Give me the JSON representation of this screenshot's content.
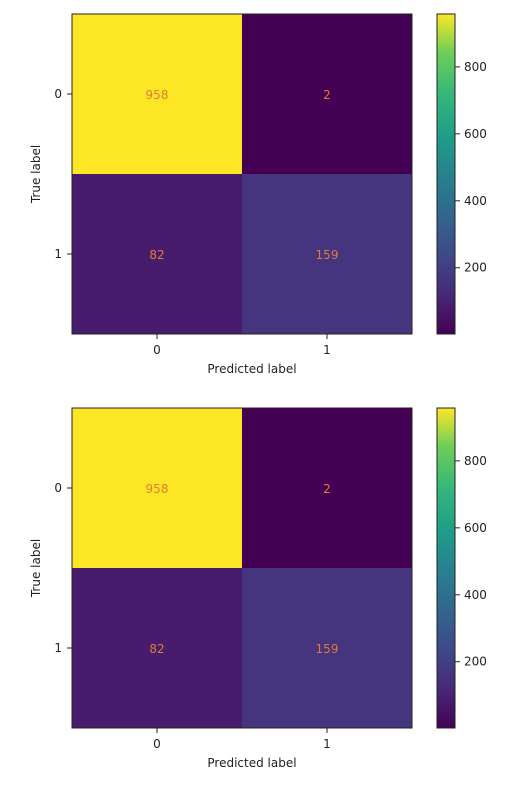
{
  "chart_data": [
    {
      "type": "heatmap",
      "xlabel": "Predicted label",
      "ylabel": "True label",
      "x_categories": [
        "0",
        "1"
      ],
      "y_categories": [
        "0",
        "1"
      ],
      "values": [
        [
          958,
          2
        ],
        [
          82,
          159
        ]
      ],
      "colormap": "viridis",
      "value_range": [
        2,
        958
      ],
      "colorbar": {
        "ticks": [
          200,
          400,
          600,
          800
        ]
      },
      "label_color": "#e07b39"
    },
    {
      "type": "heatmap",
      "xlabel": "Predicted label",
      "ylabel": "True label",
      "x_categories": [
        "0",
        "1"
      ],
      "y_categories": [
        "0",
        "1"
      ],
      "values": [
        [
          958,
          2
        ],
        [
          82,
          159
        ]
      ],
      "colormap": "viridis",
      "value_range": [
        2,
        958
      ],
      "colorbar": {
        "ticks": [
          200,
          400,
          600,
          800
        ]
      },
      "label_color": "#e07b39"
    }
  ]
}
